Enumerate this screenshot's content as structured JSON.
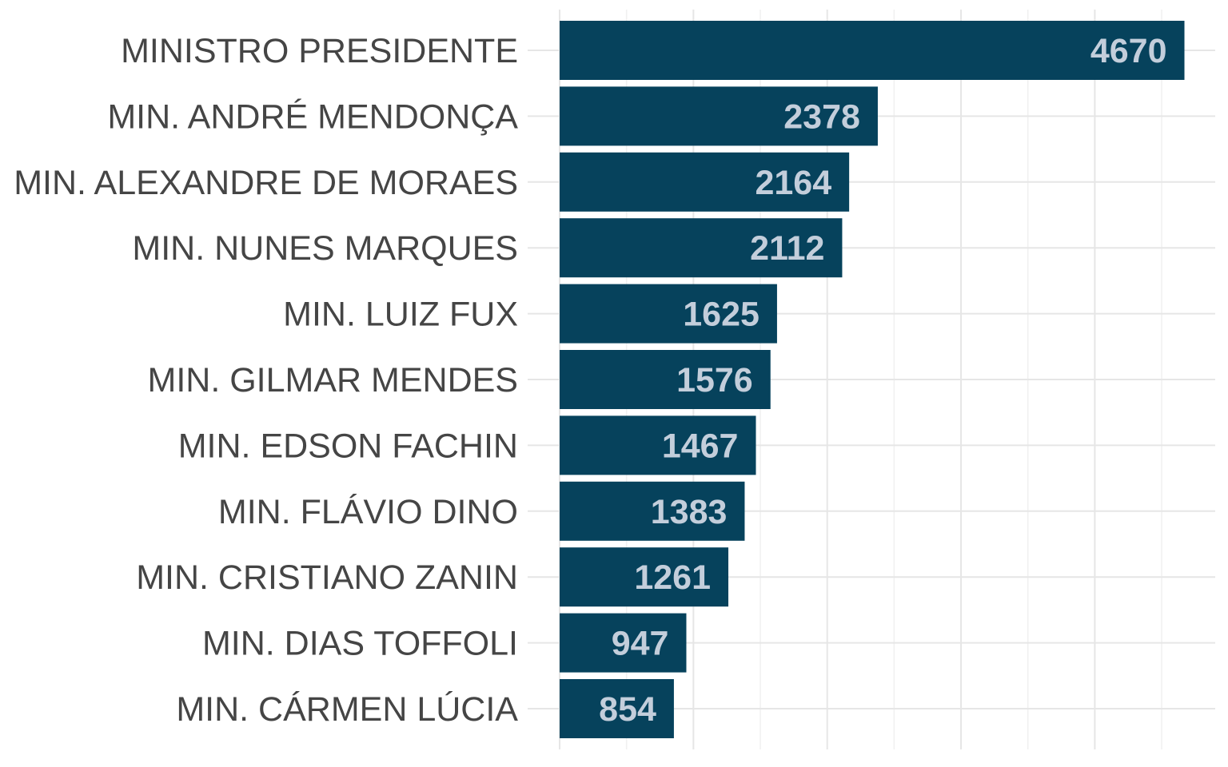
{
  "chart_data": {
    "type": "bar",
    "orientation": "horizontal",
    "categories": [
      "MINISTRO PRESIDENTE",
      "MIN. ANDRÉ MENDONÇA",
      "MIN. ALEXANDRE DE MORAES",
      "MIN. NUNES MARQUES",
      "MIN. LUIZ FUX",
      "MIN. GILMAR MENDES",
      "MIN. EDSON FACHIN",
      "MIN. FLÁVIO DINO",
      "MIN. CRISTIANO ZANIN",
      "MIN. DIAS TOFFOLI",
      "MIN. CÁRMEN LÚCIA"
    ],
    "values": [
      4670,
      2378,
      2164,
      2112,
      1625,
      1576,
      1467,
      1383,
      1261,
      947,
      854
    ],
    "xlim": [
      0,
      4900
    ],
    "grid": true,
    "legend": "none",
    "colors": {
      "bar": "#06425c",
      "value_label": "#c3cedb",
      "category_label": "#454545",
      "grid": "#e6e6e6"
    }
  }
}
